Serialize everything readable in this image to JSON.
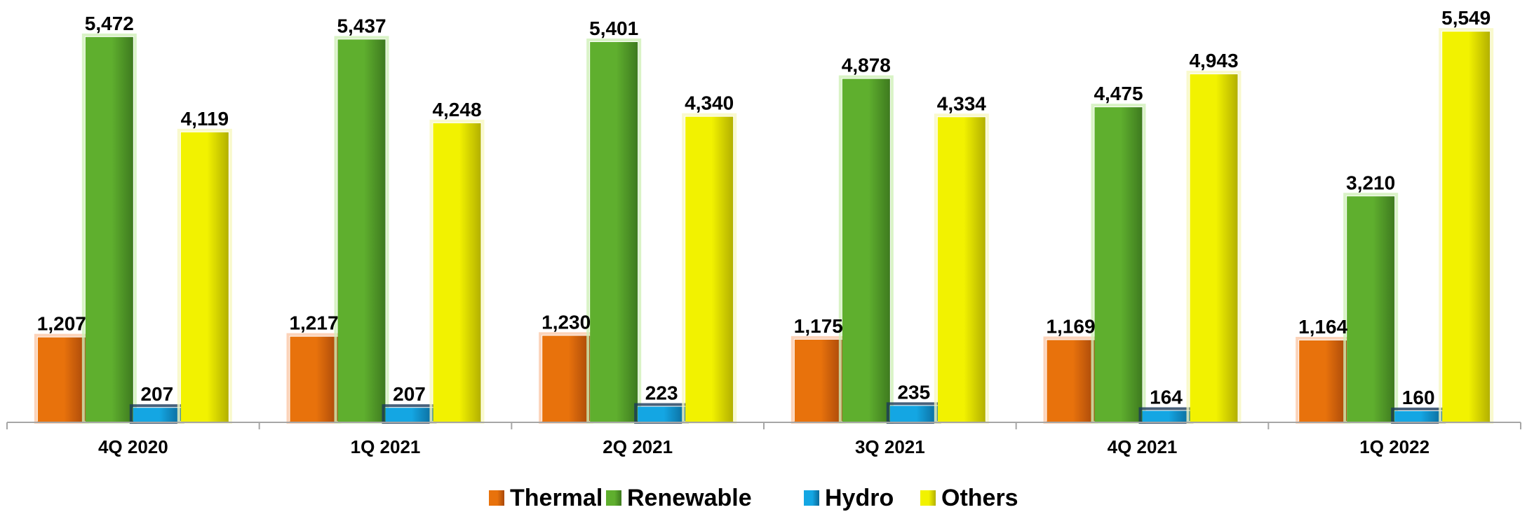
{
  "chart_data": {
    "type": "bar",
    "categories": [
      "4Q 2020",
      "1Q 2021",
      "2Q 2021",
      "3Q 2021",
      "4Q 2021",
      "1Q 2022"
    ],
    "series": [
      {
        "name": "Thermal",
        "values": [
          1207,
          1217,
          1230,
          1175,
          1169,
          1164
        ],
        "labels": [
          "1,207",
          "1,217",
          "1,230",
          "1,175",
          "1,169",
          "1,164"
        ],
        "color": "#E8720C",
        "dark": "#A8480A",
        "glow": "#FBC8A8"
      },
      {
        "name": "Renewable",
        "values": [
          5472,
          5437,
          5401,
          4878,
          4475,
          3210
        ],
        "labels": [
          "5,472",
          "5,437",
          "5,401",
          "4,878",
          "4,475",
          "3,210"
        ],
        "color": "#5FAF2E",
        "dark": "#3E7A1F",
        "glow": "#CFF0B8"
      },
      {
        "name": "Hydro",
        "values": [
          207,
          207,
          223,
          235,
          164,
          160
        ],
        "labels": [
          "207",
          "207",
          "223",
          "235",
          "164",
          "160"
        ],
        "color": "#14A6E3",
        "dark": "#0C6A9A",
        "glow": "#1A3A5A"
      },
      {
        "name": "Others",
        "values": [
          4119,
          4248,
          4340,
          4334,
          4943,
          5549
        ],
        "labels": [
          "4,119",
          "4,248",
          "4,340",
          "4,334",
          "4,943",
          "5,549"
        ],
        "color": "#F2F200",
        "dark": "#B3B000",
        "glow": "#F8F8C0"
      }
    ],
    "ylim": [
      0,
      5600
    ],
    "grid": false,
    "legend_position": "bottom"
  }
}
